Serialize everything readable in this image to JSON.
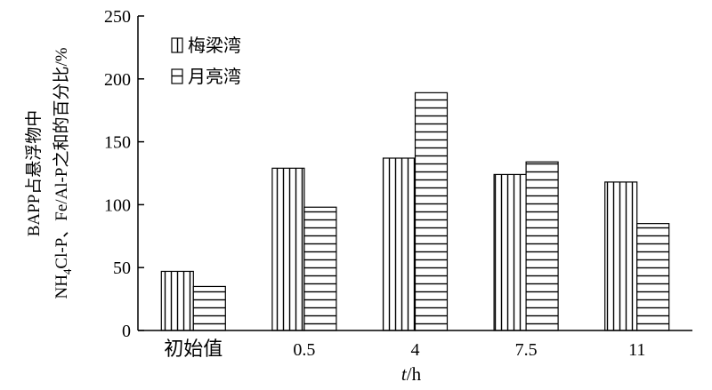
{
  "chart_data": {
    "type": "bar",
    "title": "",
    "categories": [
      "初始值",
      "0.5",
      "4",
      "7.5",
      "11"
    ],
    "series": [
      {
        "name": "梅梁湾",
        "values": [
          47,
          129,
          137,
          124,
          118
        ],
        "pattern": "vertical-stripes"
      },
      {
        "name": "月亮湾",
        "values": [
          35,
          98,
          189,
          134,
          85
        ],
        "pattern": "horizontal-stripes"
      }
    ],
    "xlabel_italic": "t",
    "xlabel_rest": "/h",
    "ylabel_line1": "BAPP占悬浮物中",
    "ylabel_line2_pre": "NH",
    "ylabel_line2_sub": "4",
    "ylabel_line2_post": "Cl-P、Fe/Al-P之和的百分比/%",
    "ylim": [
      0,
      250
    ],
    "yticks": [
      0,
      50,
      100,
      150,
      200,
      250
    ],
    "grid": false,
    "legend_position": "top-left"
  }
}
